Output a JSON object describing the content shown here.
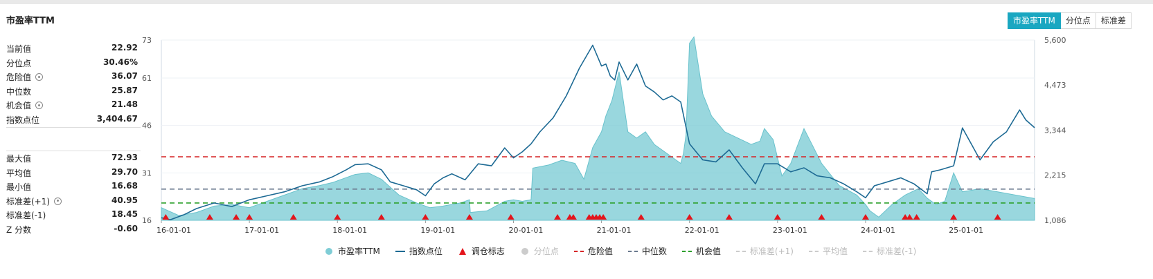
{
  "title": "市盈率TTM",
  "tabs": [
    {
      "label": "市盈率TTM",
      "active": true
    },
    {
      "label": "分位点",
      "active": false
    },
    {
      "label": "标准差",
      "active": false
    }
  ],
  "stats_top": [
    {
      "label": "当前值",
      "value": "22.92"
    },
    {
      "label": "分位点",
      "value": "30.46%"
    },
    {
      "label": "危险值",
      "value": "36.07",
      "gear": true
    },
    {
      "label": "中位数",
      "value": "25.87"
    },
    {
      "label": "机会值",
      "value": "21.48",
      "gear": true
    },
    {
      "label": "指数点位",
      "value": "3,404.67"
    }
  ],
  "stats_bottom": [
    {
      "label": "最大值",
      "value": "72.93"
    },
    {
      "label": "平均值",
      "value": "29.70"
    },
    {
      "label": "最小值",
      "value": "16.68"
    },
    {
      "label": "标准差(+1)",
      "value": "40.95",
      "gear": true
    },
    {
      "label": "标准差(-1)",
      "value": "18.45"
    },
    {
      "label": "Z 分数",
      "value": "-0.60"
    }
  ],
  "colors": {
    "pe_area": "#7fcdd6",
    "index_line": "#1d6a94",
    "danger": "#d62728",
    "median": "#6b7a8f",
    "opportunity": "#2ca02c",
    "marker": "#e4141b",
    "tab_active": "#1aa7c1"
  },
  "chart_data": {
    "type": "area",
    "x_ticks": [
      "16-01-01",
      "17-01-01",
      "18-01-01",
      "19-01-01",
      "20-01-01",
      "21-01-01",
      "22-01-01",
      "23-01-01",
      "24-01-01",
      "25-01-01"
    ],
    "y_left_ticks": [
      "16",
      "31",
      "46",
      "61",
      "73"
    ],
    "y_right_ticks": [
      "1,086",
      "2,215",
      "3,344",
      "4,473",
      "5,600"
    ],
    "ylim_left": [
      16,
      73
    ],
    "ylim_right": [
      1086,
      5600
    ],
    "xlim": [
      2016.0,
      2025.92
    ],
    "series": [
      {
        "name": "市盈率TTM",
        "axis": "left",
        "type": "area",
        "x": [
          2016.0,
          2016.08,
          2016.2,
          2016.4,
          2016.6,
          2016.8,
          2017.0,
          2017.2,
          2017.4,
          2017.6,
          2017.8,
          2017.95,
          2018.1,
          2018.2,
          2018.35,
          2018.5,
          2018.7,
          2018.9,
          2019.05,
          2019.2,
          2019.4,
          2019.5,
          2019.51,
          2019.7,
          2019.9,
          2020.0,
          2020.1,
          2020.2,
          2020.22,
          2020.4,
          2020.55,
          2020.7,
          2020.8,
          2020.9,
          2021.0,
          2021.05,
          2021.12,
          2021.2,
          2021.3,
          2021.4,
          2021.5,
          2021.6,
          2021.7,
          2021.8,
          2021.9,
          2021.93,
          2021.96,
          2022.0,
          2022.05,
          2022.15,
          2022.25,
          2022.4,
          2022.55,
          2022.7,
          2022.8,
          2022.85,
          2022.95,
          2023.05,
          2023.15,
          2023.3,
          2023.5,
          2023.7,
          2023.9,
          2024.0,
          2024.05,
          2024.15,
          2024.3,
          2024.45,
          2024.6,
          2024.7,
          2024.8,
          2024.9,
          2025.0,
          2025.1,
          2025.3,
          2025.5,
          2025.7,
          2025.92
        ],
        "values": [
          20,
          19,
          17.5,
          18.5,
          20.5,
          21,
          20,
          22,
          24,
          26,
          27,
          28,
          29.5,
          30.5,
          31,
          29,
          24,
          21.5,
          20,
          20.5,
          21.5,
          22.5,
          18.5,
          19,
          22,
          22.5,
          22,
          22.5,
          32.5,
          33.5,
          35,
          34,
          29,
          39,
          44,
          49,
          54,
          63,
          44,
          42,
          44,
          40,
          38,
          36,
          34,
          37,
          43,
          72,
          74,
          56,
          49,
          44,
          42,
          40,
          41,
          45,
          41.5,
          30,
          34,
          45,
          34,
          27,
          24,
          21,
          19,
          17,
          21,
          24,
          26,
          23,
          21,
          22,
          31,
          25,
          26,
          25,
          24,
          22.9
        ]
      },
      {
        "name": "指数点位",
        "axis": "right",
        "type": "line",
        "x": [
          2016.0,
          2016.1,
          2016.25,
          2016.4,
          2016.6,
          2016.8,
          2017.0,
          2017.2,
          2017.4,
          2017.6,
          2017.8,
          2017.95,
          2018.1,
          2018.2,
          2018.35,
          2018.5,
          2018.6,
          2018.75,
          2018.9,
          2019.0,
          2019.1,
          2019.2,
          2019.3,
          2019.45,
          2019.6,
          2019.75,
          2019.9,
          2020.0,
          2020.1,
          2020.2,
          2020.3,
          2020.45,
          2020.6,
          2020.75,
          2020.9,
          2021.0,
          2021.05,
          2021.1,
          2021.15,
          2021.2,
          2021.3,
          2021.4,
          2021.5,
          2021.6,
          2021.7,
          2021.8,
          2021.9,
          2022.0,
          2022.15,
          2022.3,
          2022.45,
          2022.6,
          2022.75,
          2022.85,
          2023.0,
          2023.15,
          2023.3,
          2023.45,
          2023.6,
          2023.75,
          2023.9,
          2024.0,
          2024.1,
          2024.25,
          2024.4,
          2024.55,
          2024.7,
          2024.75,
          2024.85,
          2025.0,
          2025.1,
          2025.2,
          2025.3,
          2025.45,
          2025.6,
          2025.75,
          2025.82,
          2025.92
        ],
        "values": [
          1150,
          1100,
          1220,
          1380,
          1520,
          1430,
          1600,
          1700,
          1800,
          1950,
          2050,
          2180,
          2350,
          2480,
          2500,
          2350,
          2050,
          1950,
          1850,
          1700,
          2000,
          2150,
          2250,
          2100,
          2500,
          2450,
          2900,
          2650,
          2800,
          3000,
          3300,
          3650,
          4200,
          4900,
          5470,
          4950,
          5000,
          4700,
          4600,
          5050,
          4600,
          5000,
          4450,
          4300,
          4100,
          4200,
          4050,
          3000,
          2600,
          2550,
          2850,
          2400,
          2000,
          2500,
          2500,
          2300,
          2400,
          2200,
          2150,
          2000,
          1800,
          1650,
          1950,
          2050,
          2150,
          2000,
          1750,
          2300,
          2350,
          2450,
          3400,
          3000,
          2600,
          3050,
          3300,
          3850,
          3600,
          3404.67
        ]
      }
    ],
    "lines": [
      {
        "name": "危险值",
        "value": 36.07
      },
      {
        "name": "中位数",
        "value": 25.87
      },
      {
        "name": "机会值",
        "value": 21.48
      }
    ],
    "markers": {
      "name": "调仓标志",
      "x": [
        2016.05,
        2016.55,
        2016.85,
        2017.0,
        2017.5,
        2018.0,
        2018.5,
        2019.0,
        2019.5,
        2019.97,
        2020.5,
        2020.64,
        2020.68,
        2020.86,
        2020.9,
        2020.94,
        2020.98,
        2021.02,
        2021.45,
        2022.0,
        2022.45,
        2023.0,
        2023.5,
        2024.0,
        2024.45,
        2024.5,
        2024.58,
        2025.0,
        2025.5
      ]
    },
    "legend": [
      "市盈率TTM",
      "指数点位",
      "调仓标志",
      "分位点",
      "危险值",
      "中位数",
      "机会值",
      "标准差(+1)",
      "平均值",
      "标准差(-1)"
    ],
    "legend_enabled": [
      true,
      true,
      true,
      false,
      true,
      true,
      true,
      false,
      false,
      false
    ],
    "legend_position": "bottom"
  }
}
